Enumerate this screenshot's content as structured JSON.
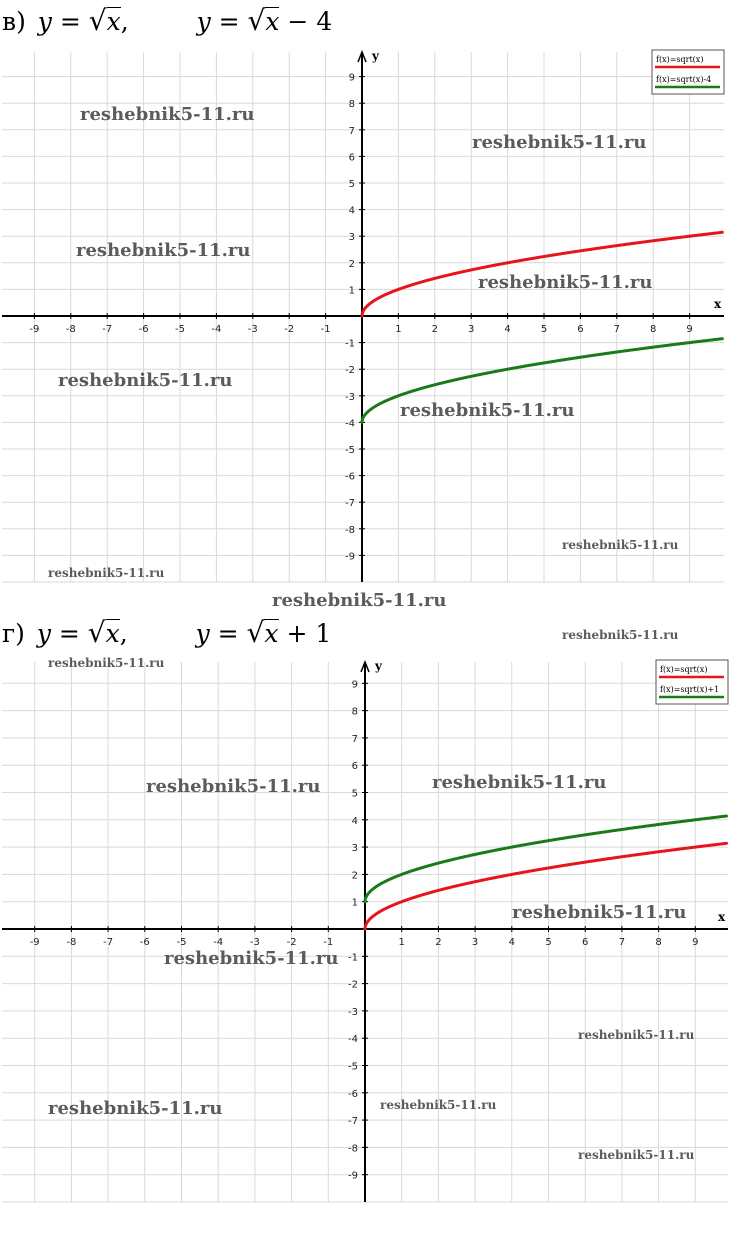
{
  "charts": [
    {
      "id": "v",
      "heading": {
        "label": "в)",
        "eq1_lhs": "y = ",
        "eq1_rad": "x",
        "eq1_rest": ",",
        "eq2_lhs": "y = ",
        "eq2_rad": "x",
        "eq2_rest": " − 4"
      },
      "watermarks": [
        "reshebnik5-11.ru",
        "reshebnik5-11.ru",
        "reshebnik5-11.ru",
        "reshebnik5-11.ru",
        "reshebnik5-11.ru",
        "reshebnik5-11.ru",
        "reshebnik5-11.ru",
        "reshebnik5-11.ru",
        "reshebnik5-11.ru"
      ]
    },
    {
      "id": "g",
      "heading": {
        "label": "г)",
        "eq1_lhs": "y = ",
        "eq1_rad": "x",
        "eq1_rest": ",",
        "eq2_lhs": "y = ",
        "eq2_rad": "x",
        "eq2_rest": " + 1"
      },
      "watermarks": [
        "reshebnik5-11.ru",
        "reshebnik5-11.ru",
        "reshebnik5-11.ru",
        "reshebnik5-11.ru",
        "reshebnik5-11.ru",
        "reshebnik5-11.ru",
        "reshebnik5-11.ru",
        "reshebnik5-11.ru",
        "reshebnik5-11.ru",
        "reshebnik5-11.ru"
      ]
    }
  ],
  "chart_data": [
    {
      "type": "line",
      "xlabel": "x",
      "ylabel": "y",
      "xlim": [
        -10,
        10
      ],
      "ylim": [
        -10,
        10
      ],
      "xticks": [
        "-9",
        "-8",
        "-7",
        "-6",
        "-5",
        "-4",
        "-3",
        "-2",
        "-1",
        "1",
        "2",
        "3",
        "4",
        "5",
        "6",
        "7",
        "8",
        "9"
      ],
      "yticks": [
        "9",
        "8",
        "7",
        "6",
        "5",
        "4",
        "3",
        "2",
        "1",
        "-1",
        "-2",
        "-3",
        "-4",
        "-5",
        "-6",
        "-7",
        "-8",
        "-9"
      ],
      "grid": true,
      "legend": "top-right",
      "series": [
        {
          "name": "f(x)=sqrt(x)",
          "color": "#e8141b",
          "formula_offset": 0,
          "x": [
            0,
            0.5,
            1,
            2,
            3,
            4,
            5,
            6,
            7,
            8,
            9,
            10
          ],
          "y": [
            0,
            0.71,
            1,
            1.41,
            1.73,
            2,
            2.24,
            2.45,
            2.65,
            2.83,
            3,
            3.16
          ]
        },
        {
          "name": "f(x)=sqrt(x)-4",
          "color": "#1a7a1a",
          "formula_offset": -4,
          "x": [
            0,
            0.5,
            1,
            2,
            3,
            4,
            5,
            6,
            7,
            8,
            9,
            10
          ],
          "y": [
            -4,
            -3.29,
            -3,
            -2.59,
            -2.27,
            -2,
            -1.76,
            -1.55,
            -1.35,
            -1.17,
            -1,
            -0.84
          ]
        }
      ]
    },
    {
      "type": "line",
      "xlabel": "x",
      "ylabel": "y",
      "xlim": [
        -10,
        10
      ],
      "ylim": [
        -10,
        10
      ],
      "xticks": [
        "-9",
        "-8",
        "-7",
        "-6",
        "-5",
        "-4",
        "-3",
        "-2",
        "-1",
        "1",
        "2",
        "3",
        "4",
        "5",
        "6",
        "7",
        "8",
        "9"
      ],
      "yticks": [
        "9",
        "8",
        "7",
        "6",
        "5",
        "4",
        "3",
        "2",
        "1",
        "-1",
        "-2",
        "-3",
        "-4",
        "-5",
        "-6",
        "-7",
        "-8",
        "-9"
      ],
      "grid": true,
      "legend": "top-right",
      "series": [
        {
          "name": "f(x)=sqrt(x)",
          "color": "#e8141b",
          "formula_offset": 0,
          "x": [
            0,
            0.5,
            1,
            2,
            3,
            4,
            5,
            6,
            7,
            8,
            9,
            10
          ],
          "y": [
            0,
            0.71,
            1,
            1.41,
            1.73,
            2,
            2.24,
            2.45,
            2.65,
            2.83,
            3,
            3.16
          ]
        },
        {
          "name": "f(x)=sqrt(x)+1",
          "color": "#1a7a1a",
          "formula_offset": 1,
          "x": [
            0,
            0.5,
            1,
            2,
            3,
            4,
            5,
            6,
            7,
            8,
            9,
            10
          ],
          "y": [
            1,
            1.71,
            2,
            2.41,
            2.73,
            3,
            3.24,
            3.45,
            3.65,
            3.83,
            4,
            4.16
          ]
        }
      ]
    }
  ]
}
